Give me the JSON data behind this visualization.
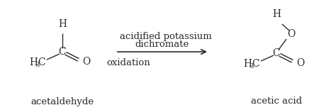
{
  "bg_color": "#ffffff",
  "text_color": "#2a2a2a",
  "line_color": "#2a2a2a",
  "acetaldehyde_label": "acetaldehyde",
  "acetic_acid_label": "acetic acid",
  "reagent_line1": "acidified potassium",
  "reagent_line2": "dichromate",
  "below_arrow": "oxidation",
  "font_size_atom": 10,
  "font_size_sub": 7.5,
  "font_size_label": 9.5,
  "font_size_reagent": 9.5
}
